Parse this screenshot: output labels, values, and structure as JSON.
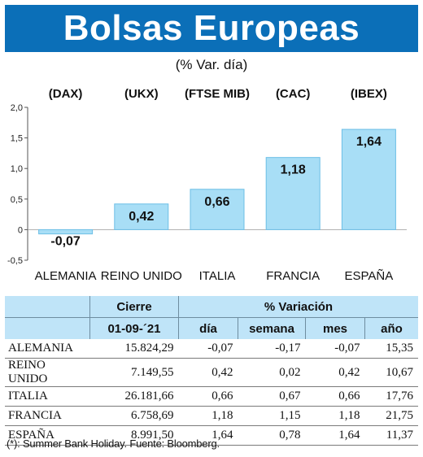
{
  "header": {
    "title": "Bolsas Europeas",
    "subtitle": "(% Var. día)"
  },
  "colors": {
    "banner": "#0b6fb8",
    "bar_fill": "#a8def6",
    "bar_stroke": "#6cbfe6",
    "table_header": "#bfe4f8"
  },
  "chart_data": {
    "type": "bar",
    "title": "",
    "categories": [
      "ALEMANIA",
      "REINO UNIDO",
      "ITALIA",
      "FRANCIA",
      "ESPAÑA"
    ],
    "indices": [
      "(DAX)",
      "(UKX)",
      "(FTSE MIB)",
      "(CAC)",
      "(IBEX)"
    ],
    "values": [
      -0.07,
      0.42,
      0.66,
      1.18,
      1.64
    ],
    "value_labels": [
      "-0,07",
      "0,42",
      "0,66",
      "1,18",
      "1,64"
    ],
    "yticks": [
      2.0,
      1.5,
      1.0,
      0.5,
      0,
      -0.5
    ],
    "ytick_labels": [
      "2,0",
      "1,5",
      "1,0",
      "0,5",
      "0",
      "-0,5"
    ],
    "ylim": [
      -0.5,
      2.0
    ],
    "xlabel": "",
    "ylabel": "",
    "grid": false,
    "legend": "none"
  },
  "table": {
    "header_cierre": "Cierre",
    "header_variacion": "% Variación",
    "header_date": "01-09-´21",
    "col_dia": "día",
    "col_semana": "semana",
    "col_mes": "mes",
    "col_anio": "año",
    "rows": [
      {
        "name": "ALEMANIA",
        "cierre": "15.824,29",
        "dia": "-0,07",
        "semana": "-0,17",
        "mes": "-0,07",
        "anio": "15,35"
      },
      {
        "name": "REINO UNIDO",
        "cierre": "7.149,55",
        "dia": "0,42",
        "semana": "0,02",
        "mes": "0,42",
        "anio": "10,67"
      },
      {
        "name": "ITALIA",
        "cierre": "26.181,66",
        "dia": "0,66",
        "semana": "0,67",
        "mes": "0,66",
        "anio": "17,76"
      },
      {
        "name": "FRANCIA",
        "cierre": "6.758,69",
        "dia": "1,18",
        "semana": "1,15",
        "mes": "1,18",
        "anio": "21,75"
      },
      {
        "name": "ESPAÑA",
        "cierre": "8.991,50",
        "dia": "1,64",
        "semana": "0,78",
        "mes": "1,64",
        "anio": "11,37"
      }
    ]
  },
  "footnote": "(*): Summer Bank Holiday. Fuente: Bloomberg."
}
